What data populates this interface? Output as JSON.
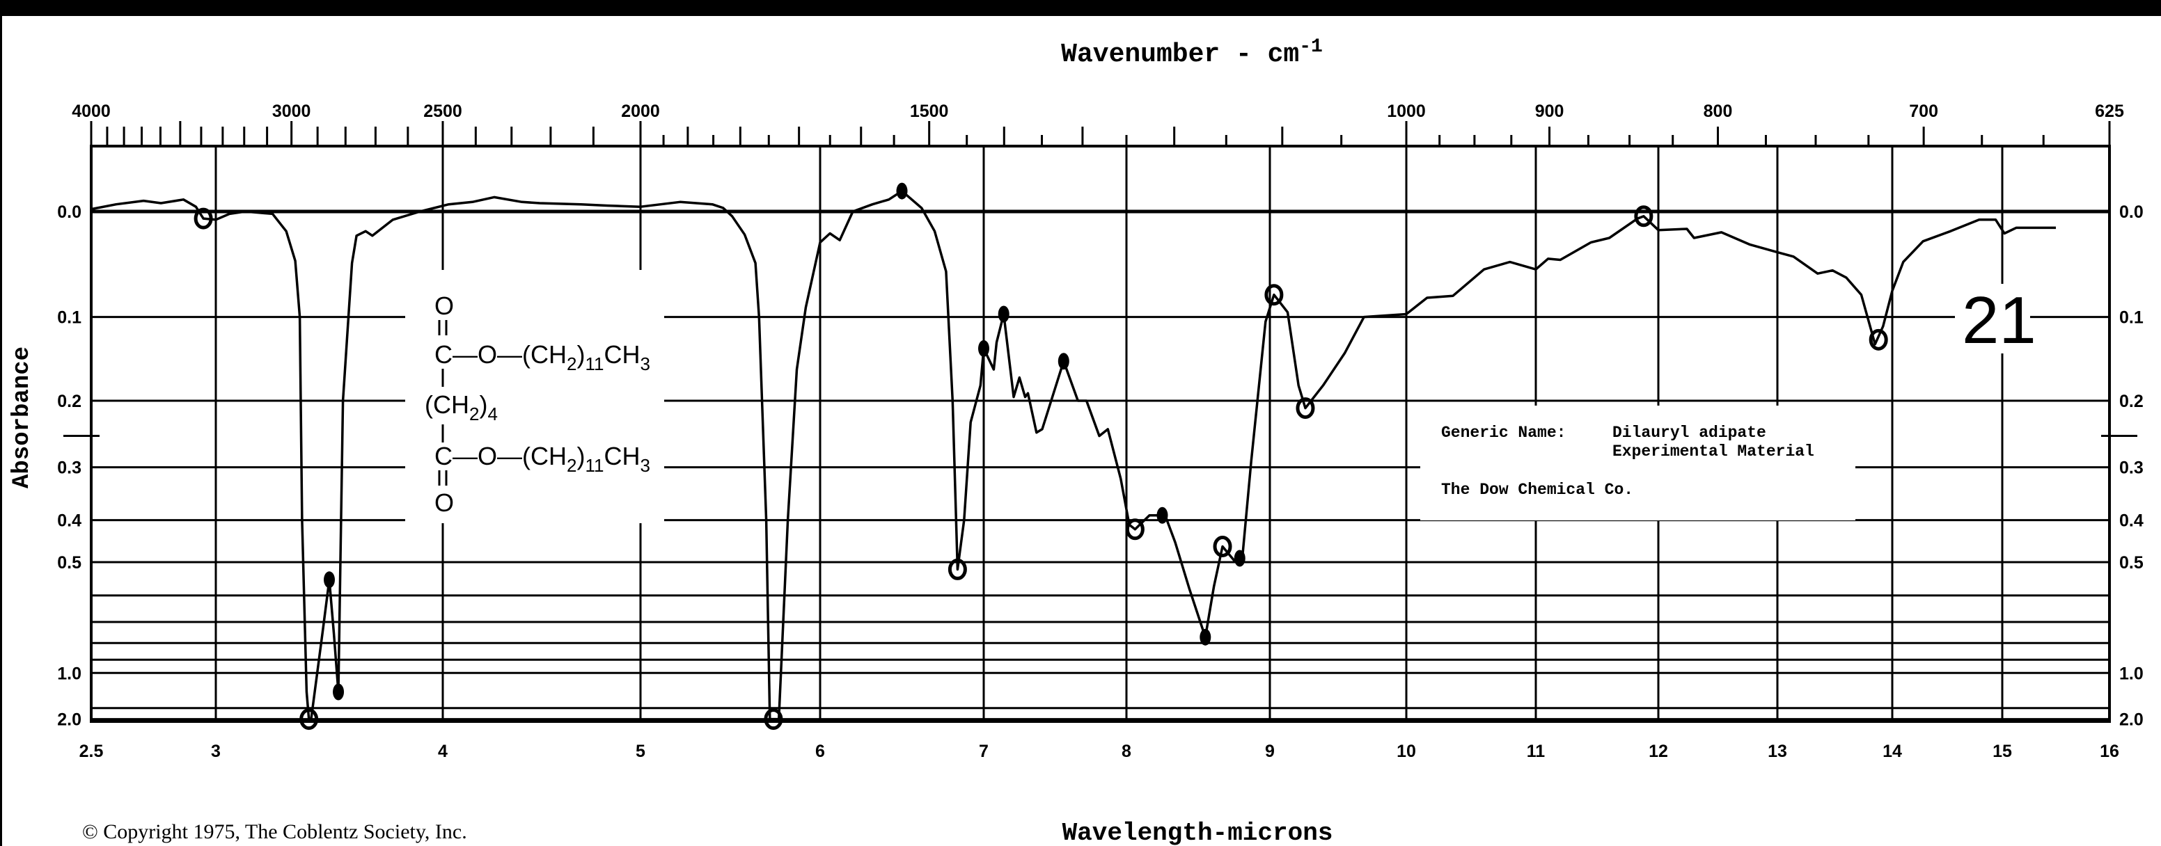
{
  "chart_data": {
    "type": "line",
    "title": "Wavenumber - cm",
    "title_superscript": "-1",
    "xlabel": "Wavelength-microns",
    "ylabel": "Absorbance",
    "xlim": [
      2.5,
      16
    ],
    "ylim": [
      0.0,
      2.0
    ],
    "grid": true,
    "x_ticks": [
      {
        "value": 2.5,
        "label": "2.5"
      },
      {
        "value": 3,
        "label": "3"
      },
      {
        "value": 4,
        "label": "4"
      },
      {
        "value": 5,
        "label": "5"
      },
      {
        "value": 6,
        "label": "6"
      },
      {
        "value": 7,
        "label": "7"
      },
      {
        "value": 8,
        "label": "8"
      },
      {
        "value": 9,
        "label": "9"
      },
      {
        "value": 10,
        "label": "10"
      },
      {
        "value": 11,
        "label": "11"
      },
      {
        "value": 12,
        "label": "12"
      },
      {
        "value": 13,
        "label": "13"
      },
      {
        "value": 14,
        "label": "14"
      },
      {
        "value": 15,
        "label": "15"
      },
      {
        "value": 16,
        "label": "16"
      }
    ],
    "top_ticks": [
      {
        "value": 4000,
        "label": "4000"
      },
      {
        "value": 3000,
        "label": "3000"
      },
      {
        "value": 2500,
        "label": "2500"
      },
      {
        "value": 2000,
        "label": "2000"
      },
      {
        "value": 1500,
        "label": "1500"
      },
      {
        "value": 1000,
        "label": "1000"
      },
      {
        "value": 900,
        "label": "900"
      },
      {
        "value": 800,
        "label": "800"
      },
      {
        "value": 700,
        "label": "700"
      },
      {
        "value": 625,
        "label": "625"
      }
    ],
    "y_ticks": [
      {
        "value": 0.0,
        "label": "0.0"
      },
      {
        "value": 0.1,
        "label": "0.1"
      },
      {
        "value": 0.2,
        "label": "0.2"
      },
      {
        "value": 0.3,
        "label": "0.3"
      },
      {
        "value": 0.4,
        "label": "0.4"
      },
      {
        "value": 0.5,
        "label": "0.5"
      },
      {
        "value": 1.0,
        "label": "1.0"
      },
      {
        "value": 2.0,
        "label": "2.0"
      }
    ],
    "y_gridlines": [
      0.0,
      0.1,
      0.2,
      0.3,
      0.4,
      0.5,
      0.6,
      0.7,
      0.8,
      0.9,
      1.0,
      1.5,
      2.0
    ],
    "y_cross_mark": 0.25,
    "series": [
      {
        "name": "Dilauryl adipate",
        "points": [
          [
            2.5,
            -0.002
          ],
          [
            2.6,
            -0.006
          ],
          [
            2.71,
            -0.009
          ],
          [
            2.78,
            -0.007
          ],
          [
            2.87,
            -0.01
          ],
          [
            2.92,
            -0.004
          ],
          [
            2.95,
            0.006
          ],
          [
            3.0,
            0.007
          ],
          [
            3.06,
            0.002
          ],
          [
            3.13,
            0.0
          ],
          [
            3.25,
            0.002
          ],
          [
            3.31,
            0.017
          ],
          [
            3.35,
            0.044
          ],
          [
            3.37,
            0.1
          ],
          [
            3.38,
            0.4
          ],
          [
            3.4,
            1.2
          ],
          [
            3.41,
            2.0
          ],
          [
            3.42,
            2.0
          ],
          [
            3.47,
            0.75
          ],
          [
            3.5,
            0.55
          ],
          [
            3.52,
            0.75
          ],
          [
            3.54,
            1.2
          ],
          [
            3.56,
            0.2
          ],
          [
            3.6,
            0.046
          ],
          [
            3.62,
            0.021
          ],
          [
            3.66,
            0.017
          ],
          [
            3.69,
            0.021
          ],
          [
            3.78,
            0.007
          ],
          [
            3.9,
            0.0
          ],
          [
            4.03,
            -0.006
          ],
          [
            4.15,
            -0.008
          ],
          [
            4.26,
            -0.012
          ],
          [
            4.4,
            -0.008
          ],
          [
            4.49,
            -0.007
          ],
          [
            4.7,
            -0.006
          ],
          [
            4.83,
            -0.005
          ],
          [
            5.0,
            -0.004
          ],
          [
            5.22,
            -0.008
          ],
          [
            5.4,
            -0.006
          ],
          [
            5.46,
            -0.003
          ],
          [
            5.51,
            0.004
          ],
          [
            5.58,
            0.02
          ],
          [
            5.64,
            0.046
          ],
          [
            5.66,
            0.1
          ],
          [
            5.7,
            0.4
          ],
          [
            5.72,
            2.0
          ],
          [
            5.77,
            2.0
          ],
          [
            5.82,
            0.4
          ],
          [
            5.87,
            0.16
          ],
          [
            5.92,
            0.09
          ],
          [
            6.0,
            0.027
          ],
          [
            6.06,
            0.019
          ],
          [
            6.12,
            0.025
          ],
          [
            6.2,
            0.0
          ],
          [
            6.32,
            -0.006
          ],
          [
            6.42,
            -0.01
          ],
          [
            6.5,
            -0.017
          ],
          [
            6.62,
            -0.003
          ],
          [
            6.7,
            0.017
          ],
          [
            6.77,
            0.054
          ],
          [
            6.81,
            0.2
          ],
          [
            6.84,
            0.52
          ],
          [
            6.88,
            0.4
          ],
          [
            6.92,
            0.23
          ],
          [
            6.98,
            0.18
          ],
          [
            7.0,
            0.135
          ],
          [
            7.07,
            0.16
          ],
          [
            7.09,
            0.128
          ],
          [
            7.14,
            0.097
          ],
          [
            7.21,
            0.195
          ],
          [
            7.25,
            0.17
          ],
          [
            7.29,
            0.195
          ],
          [
            7.31,
            0.19
          ],
          [
            7.37,
            0.245
          ],
          [
            7.41,
            0.24
          ],
          [
            7.56,
            0.15
          ],
          [
            7.66,
            0.2
          ],
          [
            7.72,
            0.2
          ],
          [
            7.81,
            0.25
          ],
          [
            7.87,
            0.24
          ],
          [
            7.96,
            0.32
          ],
          [
            8.02,
            0.41
          ],
          [
            8.06,
            0.42
          ],
          [
            8.16,
            0.39
          ],
          [
            8.27,
            0.39
          ],
          [
            8.34,
            0.45
          ],
          [
            8.44,
            0.58
          ],
          [
            8.55,
            0.77
          ],
          [
            8.61,
            0.57
          ],
          [
            8.67,
            0.46
          ],
          [
            8.76,
            0.5
          ],
          [
            8.81,
            0.48
          ],
          [
            8.87,
            0.29
          ],
          [
            8.97,
            0.105
          ],
          [
            9.03,
            0.077
          ],
          [
            9.13,
            0.095
          ],
          [
            9.21,
            0.18
          ],
          [
            9.26,
            0.21
          ],
          [
            9.39,
            0.18
          ],
          [
            9.55,
            0.14
          ],
          [
            9.69,
            0.1
          ],
          [
            10.0,
            0.097
          ],
          [
            10.16,
            0.08
          ],
          [
            10.36,
            0.078
          ],
          [
            10.6,
            0.052
          ],
          [
            10.8,
            0.045
          ],
          [
            11.0,
            0.052
          ],
          [
            11.1,
            0.042
          ],
          [
            11.2,
            0.043
          ],
          [
            11.45,
            0.027
          ],
          [
            11.6,
            0.023
          ],
          [
            11.83,
            0.006
          ],
          [
            11.88,
            0.004
          ],
          [
            12.0,
            0.016
          ],
          [
            12.24,
            0.015
          ],
          [
            12.3,
            0.023
          ],
          [
            12.53,
            0.018
          ],
          [
            12.77,
            0.029
          ],
          [
            13.0,
            0.036
          ],
          [
            13.14,
            0.04
          ],
          [
            13.35,
            0.056
          ],
          [
            13.48,
            0.053
          ],
          [
            13.6,
            0.06
          ],
          [
            13.73,
            0.077
          ],
          [
            13.85,
            0.13
          ],
          [
            13.92,
            0.11
          ],
          [
            14.0,
            0.073
          ],
          [
            14.1,
            0.045
          ],
          [
            14.28,
            0.026
          ],
          [
            14.53,
            0.017
          ],
          [
            14.79,
            0.007
          ],
          [
            14.94,
            0.007
          ],
          [
            15.02,
            0.019
          ],
          [
            15.13,
            0.014
          ],
          [
            15.5,
            0.014
          ]
        ]
      }
    ],
    "markers": [
      {
        "x": 2.95,
        "y": 0.006,
        "style": "open"
      },
      {
        "x": 3.41,
        "y": 2.0,
        "style": "open"
      },
      {
        "x": 3.5,
        "y": 0.55,
        "style": "filled"
      },
      {
        "x": 3.54,
        "y": 1.2,
        "style": "filled"
      },
      {
        "x": 5.74,
        "y": 2.0,
        "style": "open"
      },
      {
        "x": 6.5,
        "y": -0.017,
        "style": "filled"
      },
      {
        "x": 6.84,
        "y": 0.52,
        "style": "open"
      },
      {
        "x": 7.0,
        "y": 0.135,
        "style": "filled"
      },
      {
        "x": 7.14,
        "y": 0.097,
        "style": "filled"
      },
      {
        "x": 7.56,
        "y": 0.15,
        "style": "filled"
      },
      {
        "x": 8.06,
        "y": 0.42,
        "style": "open"
      },
      {
        "x": 8.25,
        "y": 0.39,
        "style": "filled"
      },
      {
        "x": 8.55,
        "y": 0.77,
        "style": "filled"
      },
      {
        "x": 8.67,
        "y": 0.46,
        "style": "open"
      },
      {
        "x": 8.79,
        "y": 0.49,
        "style": "filled"
      },
      {
        "x": 9.03,
        "y": 0.077,
        "style": "open"
      },
      {
        "x": 9.26,
        "y": 0.21,
        "style": "open"
      },
      {
        "x": 11.88,
        "y": 0.004,
        "style": "open"
      },
      {
        "x": 13.88,
        "y": 0.125,
        "style": "open"
      }
    ]
  },
  "structure": {
    "top_o": "O",
    "ester1": {
      "a": "C—O—(CH",
      "s1": "2",
      "b": ")",
      "s2": "11",
      "c": "CH",
      "s3": "3"
    },
    "chain": {
      "a": "(CH",
      "s1": "2",
      "b": ")",
      "s2": "4"
    },
    "ester2": {
      "a": "C—O—(CH",
      "s1": "2",
      "b": ")",
      "s2": "11",
      "c": "CH",
      "s3": "3"
    },
    "bottom_o": "O"
  },
  "info": {
    "generic_label": "Generic Name:",
    "generic_name": "Dilauryl adipate",
    "note": "Experimental Material",
    "company": "The Dow Chemical Co."
  },
  "chart_number": "21",
  "copyright": "© Copyright 1975, The Coblentz Society, Inc."
}
